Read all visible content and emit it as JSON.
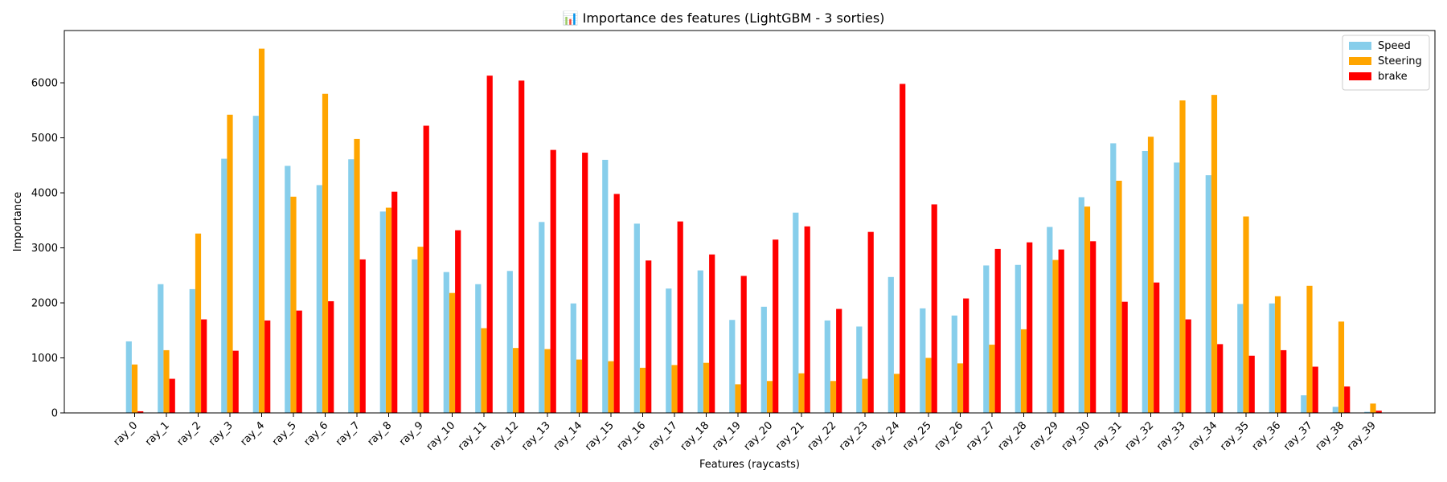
{
  "chart_data": {
    "type": "bar",
    "title": "📊 Importance des features (LightGBM - 3 sorties)",
    "xlabel": "Features (raycasts)",
    "ylabel": "Importance",
    "ylim": [
      0,
      6950
    ],
    "yticks": [
      0,
      1000,
      2000,
      3000,
      4000,
      5000,
      6000
    ],
    "grid": false,
    "legend_position": "top-right",
    "categories": [
      "ray_0",
      "ray_1",
      "ray_2",
      "ray_3",
      "ray_4",
      "ray_5",
      "ray_6",
      "ray_7",
      "ray_8",
      "ray_9",
      "ray_10",
      "ray_11",
      "ray_12",
      "ray_13",
      "ray_14",
      "ray_15",
      "ray_16",
      "ray_17",
      "ray_18",
      "ray_19",
      "ray_20",
      "ray_21",
      "ray_22",
      "ray_23",
      "ray_24",
      "ray_25",
      "ray_26",
      "ray_27",
      "ray_28",
      "ray_29",
      "ray_30",
      "ray_31",
      "ray_32",
      "ray_33",
      "ray_34",
      "ray_35",
      "ray_36",
      "ray_37",
      "ray_38",
      "ray_39"
    ],
    "series": [
      {
        "name": "Speed",
        "color": "#87CEEB",
        "values": [
          1300,
          2340,
          2250,
          4620,
          5400,
          4490,
          4140,
          4610,
          3660,
          2790,
          2560,
          2340,
          2580,
          3470,
          1990,
          4600,
          3440,
          2260,
          2590,
          1690,
          1930,
          3640,
          1680,
          1570,
          2470,
          1900,
          1770,
          2680,
          2690,
          3380,
          3920,
          4900,
          4760,
          4550,
          4320,
          1980,
          1990,
          320,
          110,
          20
        ]
      },
      {
        "name": "Steering",
        "color": "#FFA500",
        "values": [
          880,
          1140,
          3260,
          5420,
          6620,
          3930,
          5800,
          4980,
          3730,
          3020,
          2180,
          1540,
          1180,
          1160,
          970,
          940,
          820,
          870,
          910,
          520,
          580,
          720,
          580,
          620,
          710,
          1000,
          900,
          1240,
          1520,
          2780,
          3750,
          4220,
          5020,
          5680,
          5780,
          3570,
          2120,
          2310,
          1660,
          170
        ]
      },
      {
        "name": "brake",
        "color": "#FF0000",
        "values": [
          30,
          620,
          1700,
          1130,
          1680,
          1860,
          2030,
          2790,
          4020,
          5220,
          3320,
          6130,
          6040,
          4780,
          4730,
          3980,
          2770,
          3480,
          2880,
          2490,
          3150,
          3390,
          1890,
          3290,
          5980,
          3790,
          2080,
          2980,
          3100,
          2970,
          3120,
          2020,
          2370,
          1700,
          1250,
          1040,
          1140,
          840,
          480,
          40
        ]
      }
    ]
  }
}
